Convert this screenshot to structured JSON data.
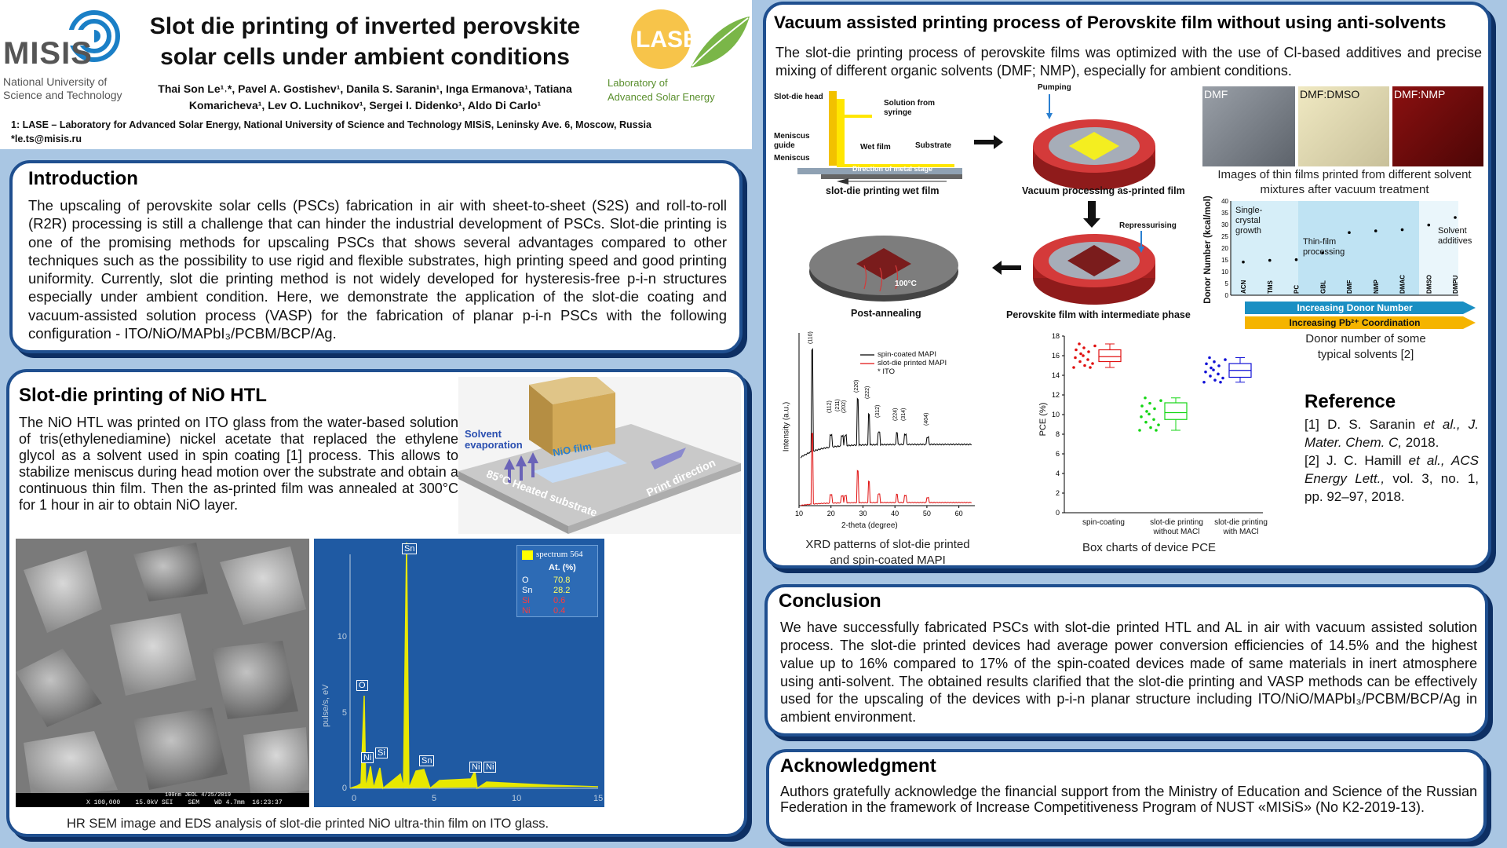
{
  "header": {
    "misis_logo_text": "MISIS",
    "misis_sub1": "National University of",
    "misis_sub2": "Science and Technology",
    "title_line1": "Slot die printing of inverted perovskite",
    "title_line2": "solar cells under ambient conditions",
    "authors_line1": "Thai Son Le¹˒*, Pavel A. Gostishev¹, Danila S. Saranin¹, Inga Ermanova¹, Tatiana",
    "authors_line2": "Komaricheva¹, Lev O. Luchnikov¹, Sergei I. Didenko¹, Aldo Di Carlo¹",
    "affiliation": "1: LASE – Laboratory for Advanced Solar Energy, National University of Science and Technology MISiS, Leninsky Ave. 6, Moscow, Russia",
    "email": "*le.ts@misis.ru",
    "lase_logo_text": "LASE",
    "lase_sub1": "Laboratory of",
    "lase_sub2": "Advanced Solar Energy"
  },
  "intro": {
    "title": "Introduction",
    "text": "The upscaling of perovskite solar cells (PSCs) fabrication in air with sheet-to-sheet (S2S) and roll-to-roll (R2R) processing is still a challenge that can hinder the industrial development of PSCs. Slot-die printing is one of the promising methods for upscaling PSCs that shows several advantages compared to other techniques such as the possibility to use rigid and flexible substrates, high printing speed and good printing uniformity. Currently, slot die printing method is not widely developed for hysteresis-free p-i-n structures especially under ambient condition. Here, we demonstrate the application of the slot-die coating and vacuum-assisted solution process (VASP) for the fabrication of planar p-i-n PSCs with the following configuration -  ITO/NiO/MAPbI₃/PCBM/BCP/Ag."
  },
  "nio": {
    "title": "Slot-die printing of NiO HTL",
    "text": "The NiO HTL was printed on ITO glass from the water-based solution of tris(ethylenediamine) nickel acetate that replaced the ethylene glycol as a solvent used in spin coating [1] process. This allows to stabilize meniscus during head motion over the substrate and obtain a continuous thin film. Then the as-printed film was annealed at 300°C for 1 hour in air to obtain NiO layer.",
    "diagram": {
      "solvent_evaporation": "Solvent evaporation",
      "nio_film": "NiO film",
      "substrate": "85°C Heated substrate",
      "print_direction": "Print direction"
    },
    "sem_footer": "X 100,000    15.0kV SEI    SEM    WD 4.7mm  16:23:37",
    "sem_scale": "100nm  JEOL     4/25/2019",
    "caption": "HR SEM image and EDS analysis of slot-die printed NiO ultra-thin film on ITO glass."
  },
  "eds": {
    "legend_title": "spectrum 564",
    "col_header": "At. (%)",
    "rows": [
      {
        "el": "O",
        "val": "70.8",
        "color": "#ffffff"
      },
      {
        "el": "Sn",
        "val": "28.2",
        "color": "#ffffff"
      },
      {
        "el": "Si",
        "val": "0.6",
        "color": "#ff3b3b"
      },
      {
        "el": "Ni",
        "val": "0.4",
        "color": "#ff3b3b"
      }
    ],
    "ylabel": "pulse/s, eV",
    "yticks": [
      "0",
      "5",
      "10"
    ],
    "xticks": [
      "0",
      "5",
      "10",
      "15"
    ],
    "peak_labels": [
      "Sn",
      "O",
      "Ni",
      "Si",
      "Sn",
      "Ni",
      "Ni"
    ]
  },
  "vacuum": {
    "title": "Vacuum assisted printing process of Perovskite film without using anti-solvents",
    "text": "The slot-die printing process of perovskite films was optimized with the use of Cl-based additives and precise mixing of different organic solvents (DMF; NMP), especially for ambient conditions.",
    "diagram": {
      "slot_die_head": "Slot-die head",
      "solution_from": "Solution from",
      "syringe": "syringe",
      "meniscus_guide1": "Meniscus",
      "meniscus_guide2": "guide",
      "meniscus": "Meniscus",
      "wet_film": "Wet film",
      "substrate": "Substrate",
      "direction": "Direction of metal stage",
      "cap1": "slot-die printing wet film",
      "pumping": "Pumping",
      "cap2": "Vacuum processing as-printed film",
      "repressurising": "Repressurising",
      "cap3": "Perovskite film with intermediate phase",
      "temp": "100°C",
      "cap4": "Post-annealing"
    },
    "films": [
      "DMF",
      "DMF:DMSO",
      "DMF:NMP"
    ],
    "films_caption": "Images of thin films printed from different solvent mixtures after vacuum treatment"
  },
  "donor_chart": {
    "ylabel": "Donor Number (kcal/mol)",
    "yticks": [
      "0",
      "5",
      "10",
      "15",
      "20",
      "25",
      "30",
      "35",
      "40"
    ],
    "labels": [
      "Single-crystal growth",
      "Thin-film processing",
      "Solvent additives"
    ],
    "arrow1": "Increasing Donor Number",
    "arrow2": "Increasing Pb²⁺ Coordination",
    "caption": "Donor number of some typical solvents [2]"
  },
  "chart_data": [
    {
      "type": "scatter",
      "ylabel": "Donor Number (kcal/mol)",
      "ylim": [
        0,
        40
      ],
      "categories": [
        "ACN",
        "TMS",
        "PC",
        "GBL",
        "DMF",
        "NMP",
        "DMAC",
        "DMSO",
        "DMPU"
      ],
      "values": [
        14.1,
        14.8,
        15.1,
        18.0,
        26.6,
        27.3,
        27.8,
        29.8,
        33.0
      ]
    },
    {
      "type": "line",
      "xlabel": "2-theta (degree)",
      "ylabel": "Intensity (a.u.)",
      "xlim": [
        10,
        65
      ],
      "xticks": [
        10,
        20,
        30,
        40,
        50,
        60
      ],
      "legend": [
        "spin-coated MAPI",
        "slot-die printed MAPI",
        "* ITO"
      ],
      "peaks": [
        "(110)",
        "(112)",
        "(211)",
        "(202)",
        "(220)",
        "(222)",
        "(312)",
        "(224)",
        "(314)",
        "(404)"
      ],
      "caption": "XRD patterns of slot-die printed and spin-coated MAPI"
    },
    {
      "type": "box",
      "ylabel": "PCE (%)",
      "ylim": [
        0,
        18
      ],
      "yticks": [
        0,
        2,
        4,
        6,
        8,
        10,
        12,
        14,
        16,
        18
      ],
      "categories": [
        "spin-coating",
        "slot-die printing without MACl",
        "slot-die printing with MACl"
      ],
      "series": [
        {
          "name": "spin-coating",
          "min": 14.8,
          "q1": 15.4,
          "median": 15.9,
          "q3": 16.6,
          "max": 17.2
        },
        {
          "name": "slot-die printing without MACl",
          "min": 8.4,
          "q1": 9.5,
          "median": 10.2,
          "q3": 11.2,
          "max": 11.7
        },
        {
          "name": "slot-die printing with MACl",
          "min": 13.3,
          "q1": 13.8,
          "median": 14.5,
          "q3": 15.2,
          "max": 15.8
        }
      ],
      "caption": "Box charts of device PCE"
    }
  ],
  "xrd": {
    "caption_l1": "XRD patterns of slot-die printed",
    "caption_l2": "and spin-coated MAPI"
  },
  "pce": {
    "caption": "Box charts of device PCE",
    "cat1": "spin-coating",
    "cat2a": "slot-die printing",
    "cat2b": "without MACl",
    "cat3a": "slot-die printing",
    "cat3b": "with MACl"
  },
  "reference": {
    "title": "Reference",
    "r1a": "[1] D. S. Saranin ",
    "r1b": "et al., J. Mater. Chem. C,",
    "r1c": " 2018.",
    "r2a": "[2] J. C. Hamill ",
    "r2b": "et al., ACS Energy Lett.,",
    "r2c": " vol. 3, no. 1, pp. 92–97, 2018."
  },
  "conclusion": {
    "title": "Conclusion",
    "text": "We have successfully fabricated PSCs with slot-die printed HTL and AL in air with vacuum assisted solution process. The slot-die printed devices had average power conversion efficiencies of 14.5% and the highest value up to 16% compared to 17% of the spin-coated devices made of same materials in inert atmosphere using anti-solvent. The obtained results clarified that the slot-die printing and VASP methods can be effectively used for the upscaling of the devices with p-i-n planar structure including ITO/NiO/MAPbI₃/PCBM/BCP/Ag in ambient environment."
  },
  "ack": {
    "title": "Acknowledgment",
    "text": "Authors gratefully acknowledge the financial support from the Ministry of Education and Science of the Russian Federation in the framework of Increase Competitiveness Program of NUST «MISiS» (No K2-2019-13)."
  }
}
